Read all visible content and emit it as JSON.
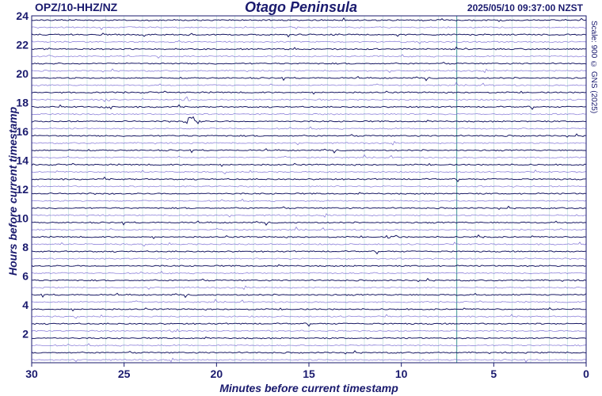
{
  "header": {
    "station": "OPZ/10-HHZ/NZ",
    "title": "Otago Peninsula",
    "timestamp": "2025/05/10 09:37:00 NZST"
  },
  "scale_note": "Scale: 900 © GNS (2025)",
  "colors": {
    "text": "#1a1a6e",
    "trace_dark": "#0d0d5c",
    "trace_light": "#6a5acd",
    "grid_vertical": "#5fa9a9",
    "frame": "#1a1a6e"
  },
  "chart_data": {
    "type": "line",
    "xlabel": "Minutes before current timestamp",
    "ylabel": "Hours before current timestamp",
    "xlim": [
      30,
      0
    ],
    "ylim": [
      0,
      24
    ],
    "x_ticks": [
      "30",
      "25",
      "20",
      "15",
      "10",
      "5",
      "0"
    ],
    "y_ticks": [
      "2",
      "4",
      "6",
      "8",
      "10",
      "12",
      "14",
      "16",
      "18",
      "20",
      "22",
      "24"
    ],
    "grid": "vertical-every-minute",
    "trace_rows": 48,
    "row_interval_minutes": 30,
    "events": [
      {
        "hour_before": 16.9,
        "minutes_before": 21.3,
        "relative_amplitude": 1.0
      },
      {
        "hour_before": 18.4,
        "minutes_before": 21.5,
        "relative_amplitude": 0.35
      },
      {
        "hour_before": 18.0,
        "minutes_before": 26.0,
        "relative_amplitude": 0.2
      },
      {
        "hour_before": 8.9,
        "minutes_before": 10.5,
        "relative_amplitude": 0.2
      },
      {
        "hour_before": 8.9,
        "minutes_before": 5.8,
        "relative_amplitude": 0.2
      },
      {
        "hour_before": 2.4,
        "minutes_before": 22.3,
        "relative_amplitude": 0.25
      }
    ]
  }
}
